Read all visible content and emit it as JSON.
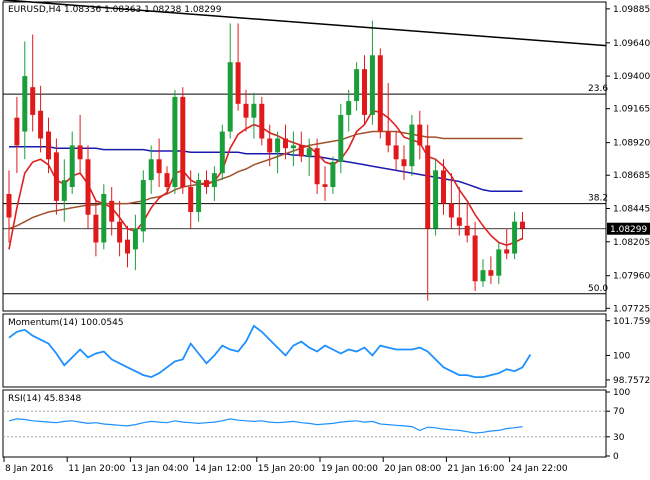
{
  "header": {
    "symbol": "EURUSD,H4",
    "ohlc": "1.08336 1.08363 1.08238 1.08299"
  },
  "chart_data": {
    "type": "candlestick",
    "price_axis": {
      "ylim": [
        1.0772,
        1.0992
      ],
      "ticks": [
        "1.09885",
        "1.09640",
        "1.09400",
        "1.09165",
        "1.08920",
        "1.08685",
        "1.08445",
        "1.08205",
        "1.07960",
        "1.07725"
      ],
      "tick_values": [
        1.09885,
        1.0964,
        1.094,
        1.09165,
        1.0892,
        1.08685,
        1.08445,
        1.08205,
        1.0796,
        1.07725
      ],
      "current_price": "1.08299",
      "current_price_value": 1.08299
    },
    "fib_levels": [
      {
        "label": "23.6",
        "value": 1.0927
      },
      {
        "label": "38.2",
        "value": 1.0848
      },
      {
        "label": "50.0",
        "value": 1.0783
      }
    ],
    "candles": [
      {
        "o": 1.0855,
        "h": 1.0872,
        "l": 1.082,
        "c": 1.0838
      },
      {
        "o": 1.091,
        "h": 1.0925,
        "l": 1.087,
        "c": 1.089
      },
      {
        "o": 1.09,
        "h": 1.0965,
        "l": 1.088,
        "c": 1.094
      },
      {
        "o": 1.0932,
        "h": 1.097,
        "l": 1.09,
        "c": 1.0912
      },
      {
        "o": 1.0915,
        "h": 1.0933,
        "l": 1.0885,
        "c": 1.0895
      },
      {
        "o": 1.09,
        "h": 1.091,
        "l": 1.087,
        "c": 1.088
      },
      {
        "o": 1.0885,
        "h": 1.0895,
        "l": 1.084,
        "c": 1.085
      },
      {
        "o": 1.085,
        "h": 1.088,
        "l": 1.0835,
        "c": 1.0865
      },
      {
        "o": 1.086,
        "h": 1.09,
        "l": 1.0855,
        "c": 1.089
      },
      {
        "o": 1.089,
        "h": 1.0912,
        "l": 1.087,
        "c": 1.088
      },
      {
        "o": 1.088,
        "h": 1.089,
        "l": 1.083,
        "c": 1.084
      },
      {
        "o": 1.084,
        "h": 1.085,
        "l": 1.081,
        "c": 1.082
      },
      {
        "o": 1.082,
        "h": 1.0862,
        "l": 1.0815,
        "c": 1.0855
      },
      {
        "o": 1.085,
        "h": 1.086,
        "l": 1.0825,
        "c": 1.0835
      },
      {
        "o": 1.0835,
        "h": 1.085,
        "l": 1.081,
        "c": 1.082
      },
      {
        "o": 1.0822,
        "h": 1.0832,
        "l": 1.0802,
        "c": 1.0812
      },
      {
        "o": 1.0815,
        "h": 1.084,
        "l": 1.08,
        "c": 1.083
      },
      {
        "o": 1.0828,
        "h": 1.0872,
        "l": 1.082,
        "c": 1.0865
      },
      {
        "o": 1.0865,
        "h": 1.089,
        "l": 1.0855,
        "c": 1.088
      },
      {
        "o": 1.088,
        "h": 1.0895,
        "l": 1.086,
        "c": 1.087
      },
      {
        "o": 1.087,
        "h": 1.0875,
        "l": 1.0855,
        "c": 1.086
      },
      {
        "o": 1.086,
        "h": 1.093,
        "l": 1.0855,
        "c": 1.0925
      },
      {
        "o": 1.0925,
        "h": 1.0932,
        "l": 1.0855,
        "c": 1.086
      },
      {
        "o": 1.086,
        "h": 1.0872,
        "l": 1.083,
        "c": 1.0842
      },
      {
        "o": 1.0842,
        "h": 1.087,
        "l": 1.0835,
        "c": 1.0865
      },
      {
        "o": 1.0865,
        "h": 1.0872,
        "l": 1.0855,
        "c": 1.086
      },
      {
        "o": 1.086,
        "h": 1.0875,
        "l": 1.085,
        "c": 1.087
      },
      {
        "o": 1.087,
        "h": 1.0905,
        "l": 1.0865,
        "c": 1.09
      },
      {
        "o": 1.09,
        "h": 1.0978,
        "l": 1.0895,
        "c": 1.095
      },
      {
        "o": 1.095,
        "h": 1.0978,
        "l": 1.0915,
        "c": 1.092
      },
      {
        "o": 1.092,
        "h": 1.093,
        "l": 1.09,
        "c": 1.091
      },
      {
        "o": 1.091,
        "h": 1.0928,
        "l": 1.0895,
        "c": 1.092
      },
      {
        "o": 1.092,
        "h": 1.0925,
        "l": 1.089,
        "c": 1.0895
      },
      {
        "o": 1.0895,
        "h": 1.0905,
        "l": 1.0875,
        "c": 1.0885
      },
      {
        "o": 1.0885,
        "h": 1.09,
        "l": 1.087,
        "c": 1.0895
      },
      {
        "o": 1.0895,
        "h": 1.0905,
        "l": 1.088,
        "c": 1.0888
      },
      {
        "o": 1.0888,
        "h": 1.09,
        "l": 1.0875,
        "c": 1.089
      },
      {
        "o": 1.089,
        "h": 1.09,
        "l": 1.0878,
        "c": 1.0882
      },
      {
        "o": 1.0882,
        "h": 1.0895,
        "l": 1.0868,
        "c": 1.0888
      },
      {
        "o": 1.0888,
        "h": 1.0895,
        "l": 1.0855,
        "c": 1.0862
      },
      {
        "o": 1.0862,
        "h": 1.0875,
        "l": 1.085,
        "c": 1.086
      },
      {
        "o": 1.086,
        "h": 1.0882,
        "l": 1.0855,
        "c": 1.0878
      },
      {
        "o": 1.0878,
        "h": 1.092,
        "l": 1.087,
        "c": 1.0912
      },
      {
        "o": 1.0912,
        "h": 1.093,
        "l": 1.09,
        "c": 1.0922
      },
      {
        "o": 1.0922,
        "h": 1.095,
        "l": 1.0915,
        "c": 1.0945
      },
      {
        "o": 1.0945,
        "h": 1.0955,
        "l": 1.0905,
        "c": 1.0912
      },
      {
        "o": 1.0912,
        "h": 1.098,
        "l": 1.0905,
        "c": 1.0955
      },
      {
        "o": 1.0955,
        "h": 1.096,
        "l": 1.0895,
        "c": 1.09
      },
      {
        "o": 1.09,
        "h": 1.0935,
        "l": 1.0885,
        "c": 1.089
      },
      {
        "o": 1.089,
        "h": 1.09,
        "l": 1.0872,
        "c": 1.088
      },
      {
        "o": 1.088,
        "h": 1.089,
        "l": 1.0865,
        "c": 1.0875
      },
      {
        "o": 1.0875,
        "h": 1.0912,
        "l": 1.0868,
        "c": 1.0905
      },
      {
        "o": 1.0905,
        "h": 1.0915,
        "l": 1.088,
        "c": 1.089
      },
      {
        "o": 1.089,
        "h": 1.0905,
        "l": 1.0778,
        "c": 1.083
      },
      {
        "o": 1.083,
        "h": 1.088,
        "l": 1.0825,
        "c": 1.0872
      },
      {
        "o": 1.0872,
        "h": 1.088,
        "l": 1.084,
        "c": 1.0848
      },
      {
        "o": 1.0848,
        "h": 1.087,
        "l": 1.083,
        "c": 1.0838
      },
      {
        "o": 1.0838,
        "h": 1.086,
        "l": 1.0825,
        "c": 1.0832
      },
      {
        "o": 1.0832,
        "h": 1.0848,
        "l": 1.082,
        "c": 1.0825
      },
      {
        "o": 1.0825,
        "h": 1.0835,
        "l": 1.0785,
        "c": 1.0792
      },
      {
        "o": 1.0792,
        "h": 1.0808,
        "l": 1.0788,
        "c": 1.08
      },
      {
        "o": 1.08,
        "h": 1.081,
        "l": 1.079,
        "c": 1.0796
      },
      {
        "o": 1.0796,
        "h": 1.082,
        "l": 1.079,
        "c": 1.0815
      },
      {
        "o": 1.0815,
        "h": 1.083,
        "l": 1.0808,
        "c": 1.0812
      },
      {
        "o": 1.0812,
        "h": 1.0842,
        "l": 1.0808,
        "c": 1.0835
      },
      {
        "o": 1.0835,
        "h": 1.0842,
        "l": 1.0822,
        "c": 1.083
      }
    ],
    "ma_fast": [
      1.0815,
      1.0845,
      1.087,
      1.0878,
      1.088,
      1.0876,
      1.0865,
      1.0862,
      1.0868,
      1.087,
      1.0862,
      1.085,
      1.0848,
      1.0845,
      1.0838,
      1.083,
      1.0828,
      1.0835,
      1.0845,
      1.0852,
      1.0856,
      1.087,
      1.0872,
      1.0865,
      1.0862,
      1.0862,
      1.0864,
      1.0872,
      1.0888,
      1.0898,
      1.0902,
      1.0905,
      1.0903,
      1.0899,
      1.0897,
      1.0894,
      1.0892,
      1.089,
      1.0889,
      1.0884,
      1.0878,
      1.0876,
      1.088,
      1.0888,
      1.09,
      1.0905,
      1.0915,
      1.0914,
      1.091,
      1.0904,
      1.0896,
      1.0894,
      1.0892,
      1.0882,
      1.088,
      1.0875,
      1.0868,
      1.0858,
      1.085,
      1.084,
      1.0832,
      1.0825,
      1.082,
      1.0818,
      1.082,
      1.0823
    ],
    "ma_mid": [
      1.083,
      1.0832,
      1.0835,
      1.0838,
      1.084,
      1.0842,
      1.0843,
      1.0844,
      1.0845,
      1.0846,
      1.0847,
      1.0847,
      1.0848,
      1.0848,
      1.0848,
      1.0848,
      1.0849,
      1.085,
      1.0852,
      1.0853,
      1.0855,
      1.0858,
      1.086,
      1.0861,
      1.0862,
      1.0863,
      1.0864,
      1.0866,
      1.0868,
      1.0871,
      1.0873,
      1.0876,
      1.0878,
      1.088,
      1.0882,
      1.0884,
      1.0886,
      1.0888,
      1.089,
      1.0891,
      1.0892,
      1.0893,
      1.0894,
      1.0896,
      1.0898,
      1.0899,
      1.09,
      1.09,
      1.09,
      1.09,
      1.0899,
      1.0898,
      1.0897,
      1.0896,
      1.0896,
      1.0895,
      1.0895,
      1.0895,
      1.0895,
      1.0895,
      1.0895,
      1.0895,
      1.0895,
      1.0895,
      1.0895,
      1.0895
    ],
    "ma_slow": [
      1.0889,
      1.0889,
      1.0889,
      1.0889,
      1.0889,
      1.0889,
      1.0888,
      1.0888,
      1.0888,
      1.0888,
      1.0888,
      1.0888,
      1.0887,
      1.0887,
      1.0887,
      1.0887,
      1.0887,
      1.0887,
      1.0886,
      1.0886,
      1.0886,
      1.0886,
      1.0886,
      1.0885,
      1.0885,
      1.0885,
      1.0885,
      1.0885,
      1.0885,
      1.0885,
      1.0884,
      1.0884,
      1.0884,
      1.0884,
      1.0884,
      1.0884,
      1.0883,
      1.0883,
      1.0882,
      1.0882,
      1.0881,
      1.088,
      1.0879,
      1.0878,
      1.0877,
      1.0876,
      1.0875,
      1.0874,
      1.0873,
      1.0872,
      1.0871,
      1.087,
      1.0869,
      1.0868,
      1.0867,
      1.0866,
      1.0865,
      1.0864,
      1.0862,
      1.086,
      1.0858,
      1.0857,
      1.0857,
      1.0857,
      1.0857,
      1.0857
    ],
    "trendline": {
      "from": 1.0995,
      "to": 1.0962
    },
    "momentum": {
      "label": "Momentum(14) 100.0545",
      "ylim": [
        98.5,
        101.9
      ],
      "ticks": [
        "101.7596",
        "100",
        "98.7572"
      ],
      "tick_values": [
        101.7596,
        100,
        98.7572
      ],
      "values": [
        100.9,
        101.2,
        101.3,
        101.0,
        100.8,
        100.6,
        100.1,
        99.5,
        99.9,
        100.3,
        99.9,
        100.1,
        100.2,
        99.8,
        99.6,
        99.4,
        99.2,
        99.0,
        98.9,
        99.1,
        99.4,
        99.7,
        99.8,
        100.6,
        100.1,
        99.6,
        100.0,
        100.5,
        100.3,
        100.2,
        100.7,
        101.5,
        101.2,
        100.8,
        100.4,
        100.0,
        100.5,
        100.7,
        100.4,
        100.2,
        100.5,
        100.3,
        100.1,
        100.3,
        100.2,
        100.4,
        100.0,
        100.5,
        100.4,
        100.3,
        100.3,
        100.3,
        100.4,
        100.2,
        99.8,
        99.4,
        99.2,
        99.0,
        99.0,
        98.9,
        98.9,
        99.0,
        99.1,
        99.3,
        99.2,
        99.4,
        100.05
      ]
    },
    "rsi": {
      "label": "RSI(14) 45.8348",
      "ylim": [
        0,
        100
      ],
      "ticks": [
        "100",
        "70",
        "30",
        "0"
      ],
      "tick_values": [
        100,
        70,
        30,
        0
      ],
      "values": [
        55,
        58,
        57,
        55,
        54,
        53,
        52,
        54,
        55,
        53,
        51,
        52,
        50,
        49,
        48,
        47,
        49,
        52,
        54,
        53,
        52,
        55,
        53,
        52,
        51,
        52,
        53,
        55,
        58,
        56,
        55,
        54,
        55,
        53,
        52,
        53,
        54,
        52,
        51,
        49,
        50,
        51,
        53,
        54,
        55,
        53,
        54,
        50,
        49,
        48,
        47,
        46,
        40,
        45,
        44,
        42,
        41,
        40,
        38,
        36,
        37,
        39,
        40,
        43,
        44,
        46
      ]
    },
    "x_axis": {
      "labels": [
        "8 Jan 2016",
        "11 Jan 20:00",
        "13 Jan 04:00",
        "14 Jan 12:00",
        "15 Jan 20:00",
        "19 Jan 00:00",
        "20 Jan 08:00",
        "21 Jan 16:00",
        "24 Jan 22:00"
      ],
      "label_candle_index": [
        0,
        8,
        16,
        24,
        32,
        40,
        48,
        56,
        64
      ]
    },
    "colors": {
      "bull": "#1a9e3a",
      "bear": "#e01a1a",
      "ma_fast": "#e02020",
      "ma_mid": "#a0522d",
      "ma_slow": "#1a1ab0",
      "indicator": "#1e90ff",
      "grid": "#000000"
    }
  }
}
